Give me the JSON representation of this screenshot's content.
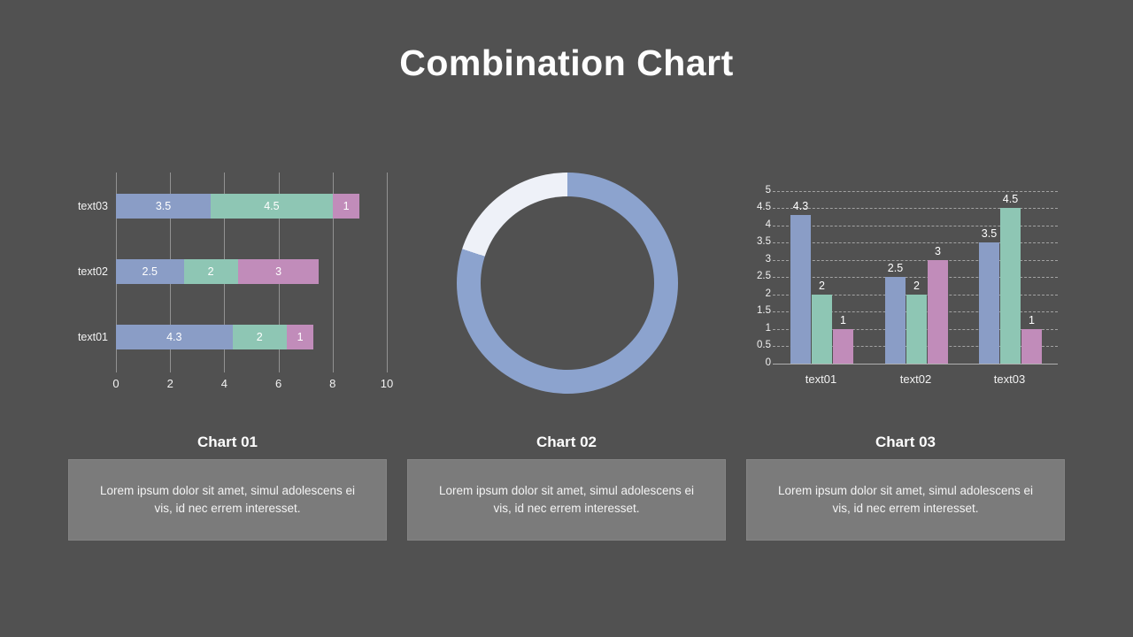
{
  "slide": {
    "title": "Combination Chart"
  },
  "colors": {
    "background": "#515151",
    "series": [
      "#8a9dc6",
      "#8ec6b4",
      "#c18cba"
    ],
    "donut_main": "#8ca3ce",
    "donut_light": "#eef1f8",
    "gridline": "#9e9e9e",
    "caption_box": "#7b7b7b",
    "text": "#ffffff"
  },
  "chart_data": [
    {
      "id": "chart01",
      "type": "bar",
      "orientation": "horizontal",
      "stacked": true,
      "title": "Chart 01",
      "categories": [
        "text01",
        "text02",
        "text03"
      ],
      "series": [
        {
          "name": "series1",
          "color": "#8a9dc6",
          "values": [
            4.3,
            2.5,
            3.5
          ]
        },
        {
          "name": "series2",
          "color": "#8ec6b4",
          "values": [
            2,
            2,
            4.5
          ]
        },
        {
          "name": "series3",
          "color": "#c18cba",
          "values": [
            1,
            3,
            1
          ]
        }
      ],
      "xlim": [
        0,
        10
      ],
      "xticks": [
        "0",
        "2",
        "4",
        "6",
        "8",
        "10"
      ],
      "grid": true,
      "legend": "none",
      "data_labels": true
    },
    {
      "id": "chart02",
      "type": "pie",
      "donut": true,
      "title": "Chart 02",
      "slices": [
        {
          "name": "main",
          "value": 80,
          "color": "#8ca3ce"
        },
        {
          "name": "light",
          "value": 20,
          "color": "#eef1f8"
        }
      ],
      "start": "top",
      "legend": "none"
    },
    {
      "id": "chart03",
      "type": "bar",
      "orientation": "vertical",
      "stacked": false,
      "title": "Chart 03",
      "categories": [
        "text01",
        "text02",
        "text03"
      ],
      "series": [
        {
          "name": "series1",
          "color": "#8a9dc6",
          "values": [
            4.3,
            2.5,
            3.5
          ]
        },
        {
          "name": "series2",
          "color": "#8ec6b4",
          "values": [
            2,
            2,
            4.5
          ]
        },
        {
          "name": "series3",
          "color": "#c18cba",
          "values": [
            1,
            3,
            1
          ]
        }
      ],
      "ylim": [
        0,
        5
      ],
      "yticks": [
        "0",
        "0.5",
        "1",
        "1.5",
        "2",
        "2.5",
        "3",
        "3.5",
        "4",
        "4.5",
        "5"
      ],
      "grid": "dashed",
      "legend": "none",
      "data_labels": true
    }
  ],
  "captions": [
    {
      "title": "Chart 01",
      "body": "Lorem ipsum dolor sit amet, simul adolescens ei vis, id nec errem interesset."
    },
    {
      "title": "Chart 02",
      "body": "Lorem ipsum dolor sit amet, simul adolescens ei vis, id nec errem interesset."
    },
    {
      "title": "Chart 03",
      "body": "Lorem ipsum dolor sit amet, simul adolescens ei vis, id nec errem interesset."
    }
  ]
}
